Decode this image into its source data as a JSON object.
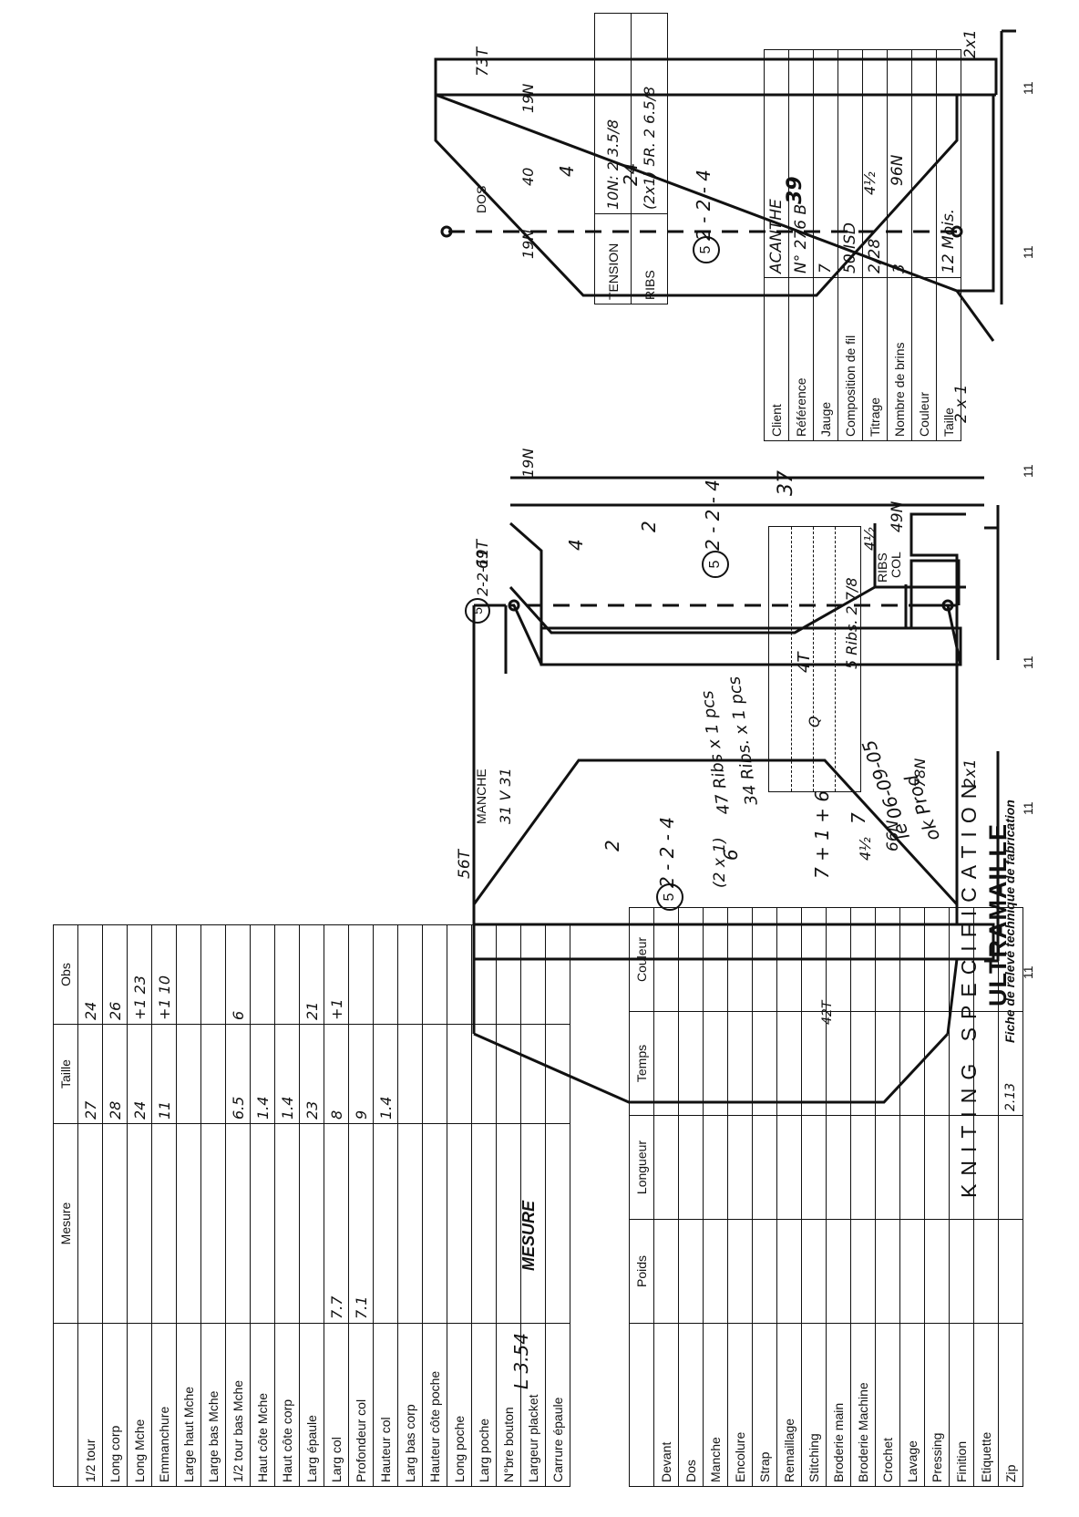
{
  "header": {
    "brand": "ULTRAMAILLE",
    "subtitle": "KNITING SPECIFICATION",
    "ok_note": "ok Prod",
    "date_note": "le 06-09-05"
  },
  "client_table": {
    "rows": [
      {
        "label": "Client",
        "value": "ACANTHE"
      },
      {
        "label": "Référence",
        "value": "N° 276 B"
      },
      {
        "label": "Jauge",
        "value": "7"
      },
      {
        "label": "Composition de fil",
        "value": "50 ISD"
      },
      {
        "label": "Titrage",
        "value": "2/28"
      },
      {
        "label": "Nombre de brins",
        "value": "3"
      },
      {
        "label": "Couleur",
        "value": ""
      },
      {
        "label": "Taille",
        "value": "12 Mois."
      }
    ]
  },
  "tension_table": {
    "tension_label": "TENSION",
    "tension_value": "10N: 2 3.5/8",
    "ribs_label": "RIBS",
    "ribs_value": "(2x1) 5R. 2 6.5/8"
  },
  "col_block": {
    "col_label": "COL",
    "ribs_label": "RIBS",
    "ribs_note": "5 Ribs. 2 7/8",
    "inner_note": "4T",
    "inner_mark": "Q",
    "line1": "34 Ribs. x 1 pcs",
    "line2": "47 Ribs x 1 pcs",
    "bracket_note": "(2 x 1)"
  },
  "dos": {
    "label": "DOS",
    "top_ribs": "2x1",
    "top_count": "73T",
    "shoulder_left": "19N",
    "shoulder_center": "40",
    "shoulder_right": "19N",
    "center_1": "4",
    "center_2": "24",
    "center_3": "2 - 2 - 4",
    "circle": "5",
    "center_4": "39",
    "rib_height": "4½",
    "bottom_needles": "96N",
    "bracket_1": "11",
    "bracket_2": "11",
    "corner_mark": "2x1"
  },
  "devant": {
    "top_ribs": "2 x 1",
    "shoulder": "19N",
    "total": "69T",
    "center_1": "4",
    "center_2": "2",
    "center_3": "2 - 2 - 4",
    "circle": "5",
    "center_4": "37",
    "neck_seq": "2-2-11",
    "neck_circle": "5",
    "rib_height": "4½",
    "bottom_needles": "49N",
    "bracket_1": "11",
    "bracket_2": "11"
  },
  "manche": {
    "label": "MANCHE",
    "top_ribs": "2x1",
    "top_needles": "78N",
    "shoulder": "31 V 31",
    "total": "56T",
    "center_1": "2",
    "center_2": "2 - 2 - 4",
    "circle": "5",
    "center_3": "6",
    "center_4": "7 + 1 + 6",
    "center_5": "7",
    "side_mark": "42T",
    "rib_height": "4½",
    "bottom_needles": "66N",
    "bracket_1": "11",
    "bracket_2": "11"
  },
  "process_table": {
    "caption": "Fiche de relevé technique de fabrication",
    "headers": [
      "",
      "Poids",
      "Longueur",
      "Temps",
      "Couleur"
    ],
    "rows": [
      [
        "Devant",
        "",
        "",
        "",
        ""
      ],
      [
        "Dos",
        "",
        "",
        "",
        ""
      ],
      [
        "Manche",
        "",
        "",
        "",
        ""
      ],
      [
        "Encolure",
        "",
        "",
        "",
        ""
      ],
      [
        "Strap",
        "",
        "",
        "",
        ""
      ],
      [
        "Remaillage",
        "",
        "",
        "",
        ""
      ],
      [
        "Stitching",
        "",
        "",
        "",
        ""
      ],
      [
        "Broderie main",
        "",
        "",
        "",
        ""
      ],
      [
        "Broderie Machine",
        "",
        "",
        "",
        ""
      ],
      [
        "Crochet",
        "",
        "",
        "",
        ""
      ],
      [
        "Lavage",
        "",
        "",
        "",
        ""
      ],
      [
        "Pressing",
        "",
        "",
        "",
        ""
      ],
      [
        "Finition",
        "",
        "",
        "",
        ""
      ],
      [
        "Etiquette",
        "",
        "",
        "",
        ""
      ],
      [
        "Zip",
        "",
        "",
        "2.13",
        ""
      ]
    ]
  },
  "mesure_table": {
    "title": "MESURE",
    "col_mesure": "Mesure",
    "col_taille": "Taille",
    "col_obs": "Obs",
    "weight_note": "L 3.54",
    "rows": [
      {
        "label": "1/2 tour",
        "mesure": "",
        "taille": "27",
        "obs": "24"
      },
      {
        "label": "Long corp",
        "mesure": "",
        "taille": "28",
        "obs": "26"
      },
      {
        "label": "Long Mche",
        "mesure": "",
        "taille": "24",
        "obs": "+1  23"
      },
      {
        "label": "Emmanchure",
        "mesure": "",
        "taille": "11",
        "obs": "+1  10"
      },
      {
        "label": "Large haut Mche",
        "mesure": "",
        "taille": "",
        "obs": ""
      },
      {
        "label": "Large bas Mche",
        "mesure": "",
        "taille": "",
        "obs": ""
      },
      {
        "label": "1/2 tour bas Mche",
        "mesure": "",
        "taille": "6.5",
        "obs": "6"
      },
      {
        "label": "Haut côte Mche",
        "mesure": "",
        "taille": "1.4",
        "obs": ""
      },
      {
        "label": "Haut côte corp",
        "mesure": "",
        "taille": "1.4",
        "obs": ""
      },
      {
        "label": "Larg épaule",
        "mesure": "",
        "taille": "23",
        "obs": "21"
      },
      {
        "label": "Larg col",
        "mesure": "7.7",
        "taille": "8",
        "obs": "+1"
      },
      {
        "label": "Profondeur col",
        "mesure": "7.1",
        "taille": "9",
        "obs": ""
      },
      {
        "label": "Hauteur col",
        "mesure": "",
        "taille": "1.4",
        "obs": ""
      },
      {
        "label": "Larg bas corp",
        "mesure": "",
        "taille": "",
        "obs": ""
      },
      {
        "label": "Hauteur côte poche",
        "mesure": "",
        "taille": "",
        "obs": ""
      },
      {
        "label": "Long poche",
        "mesure": "",
        "taille": "",
        "obs": ""
      },
      {
        "label": "Larg poche",
        "mesure": "",
        "taille": "",
        "obs": ""
      },
      {
        "label": "N°bre bouton",
        "mesure": "",
        "taille": "",
        "obs": ""
      },
      {
        "label": "Largeur placket",
        "mesure": "",
        "taille": "",
        "obs": ""
      },
      {
        "label": "Carrure épaule",
        "mesure": "",
        "taille": "",
        "obs": ""
      }
    ]
  }
}
